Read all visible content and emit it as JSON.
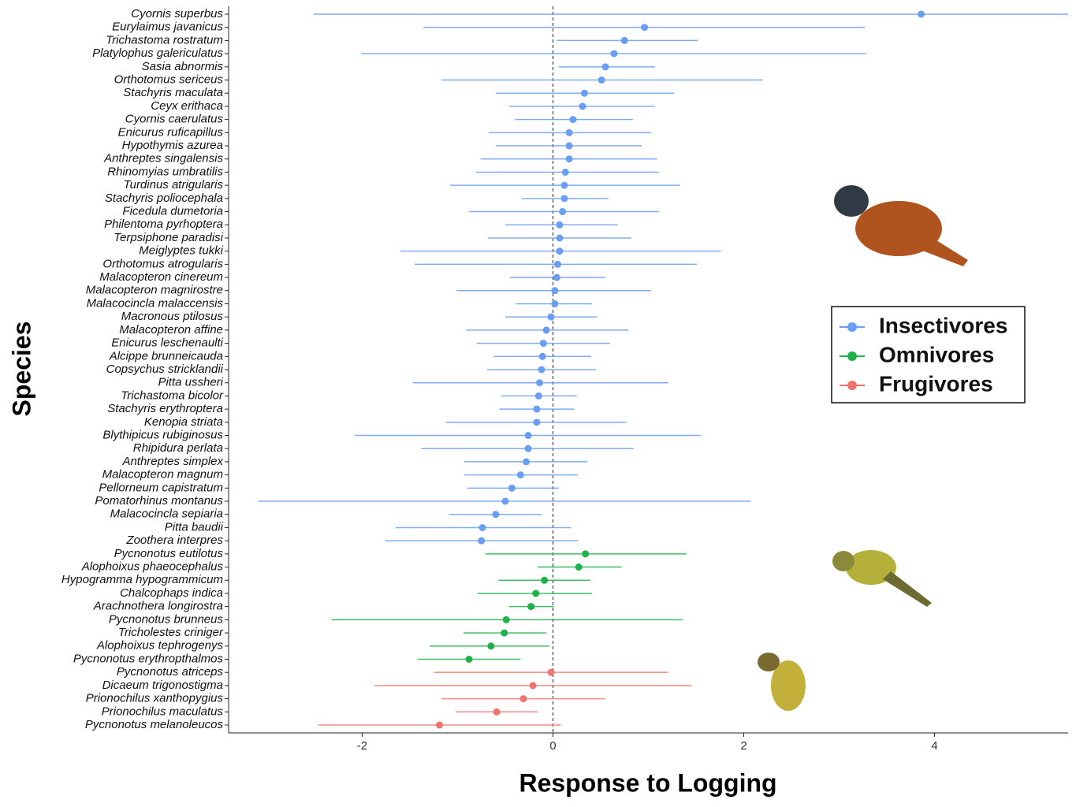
{
  "chart_data": {
    "type": "forest",
    "x_label": "Response to Logging",
    "y_label": "Species",
    "xlim": [
      -3.4,
      5.4
    ],
    "xticks": [
      -2,
      0,
      2,
      4
    ],
    "reference_line": 0,
    "legend": "right",
    "series": [
      {
        "name": "Insectivores",
        "color": "#6a9ef5",
        "categories": [
          "Cyornis superbus",
          "Eurylaimus javanicus",
          "Trichastoma rostratum",
          "Platylophus galericulatus",
          "Sasia abnormis",
          "Orthotomus sericeus",
          "Stachyris maculata",
          "Ceyx erithaca",
          "Cyornis caerulatus",
          "Enicurus ruficapillus",
          "Hypothymis azurea",
          "Anthreptes singalensis",
          "Rhinomyias umbratilis",
          "Turdinus atrigularis",
          "Stachyris poliocephala",
          "Ficedula dumetoria",
          "Philentoma pyrhoptera",
          "Terpsiphone paradisi",
          "Meiglyptes tukki",
          "Orthotomus atrogularis",
          "Malacopteron cinereum",
          "Malacopteron magnirostre",
          "Malacocincla malaccensis",
          "Macronous ptilosus",
          "Malacopteron affine",
          "Enicurus leschenaulti",
          "Alcippe brunneicauda",
          "Copsychus stricklandii",
          "Pitta ussheri",
          "Trichastoma bicolor",
          "Stachyris erythroptera",
          "Kenopia striata",
          "Blythipicus rubiginosus",
          "Rhipidura perlata",
          "Anthreptes simplex",
          "Malacopteron magnum",
          "Pellorneum capistratum",
          "Pomatorhinus montanus",
          "Malacocincla sepiaria",
          "Pitta baudii",
          "Zoothera interpres"
        ],
        "values": [
          3.86,
          0.96,
          0.75,
          0.64,
          0.55,
          0.51,
          0.33,
          0.31,
          0.21,
          0.17,
          0.17,
          0.17,
          0.13,
          0.12,
          0.12,
          0.1,
          0.07,
          0.07,
          0.07,
          0.05,
          0.04,
          0.02,
          0.02,
          -0.02,
          -0.07,
          -0.1,
          -0.11,
          -0.12,
          -0.14,
          -0.15,
          -0.17,
          -0.17,
          -0.26,
          -0.26,
          -0.28,
          -0.34,
          -0.43,
          -0.5,
          -0.6,
          -0.74,
          -0.75
        ],
        "lower": [
          -2.51,
          -1.36,
          0.04,
          -2.01,
          0.06,
          -1.17,
          -0.6,
          -0.46,
          -0.4,
          -0.67,
          -0.6,
          -0.76,
          -0.81,
          -1.08,
          -0.33,
          -0.88,
          -0.5,
          -0.68,
          -1.6,
          -1.45,
          -0.45,
          -1.01,
          -0.39,
          -0.5,
          -0.91,
          -0.8,
          -0.62,
          -0.69,
          -1.47,
          -0.54,
          -0.56,
          -1.12,
          -2.08,
          -1.38,
          -0.93,
          -0.93,
          -0.9,
          -3.09,
          -1.09,
          -1.65,
          -1.76
        ],
        "upper": [
          5.4,
          3.27,
          1.52,
          3.28,
          1.07,
          2.2,
          1.27,
          1.07,
          0.84,
          1.03,
          0.93,
          1.09,
          1.11,
          1.33,
          0.58,
          1.11,
          0.68,
          0.82,
          1.76,
          1.51,
          0.55,
          1.03,
          0.41,
          0.46,
          0.79,
          0.6,
          0.4,
          0.45,
          1.21,
          0.25,
          0.22,
          0.77,
          1.55,
          0.85,
          0.36,
          0.26,
          0.06,
          2.07,
          -0.12,
          0.19,
          0.26
        ]
      },
      {
        "name": "Omnivores",
        "color": "#1fb24a",
        "categories": [
          "Pycnonotus eutilotus",
          "Alophoixus phaeocephalus",
          "Hypogramma hypogrammicum",
          "Chalcophaps indica",
          "Arachnothera longirostra",
          "Pycnonotus brunneus",
          "Tricholestes criniger",
          "Alophoixus tephrogenys",
          "Pycnonotus erythropthalmos"
        ],
        "values": [
          0.34,
          0.27,
          -0.09,
          -0.18,
          -0.23,
          -0.49,
          -0.51,
          -0.65,
          -0.88
        ],
        "lower": [
          -0.71,
          -0.16,
          -0.57,
          -0.79,
          -0.46,
          -2.32,
          -0.94,
          -1.29,
          -1.42
        ],
        "upper": [
          1.4,
          0.72,
          0.39,
          0.41,
          0.01,
          1.36,
          -0.07,
          -0.04,
          -0.34
        ]
      },
      {
        "name": "Frugivores",
        "color": "#f0746e",
        "categories": [
          "Pycnonotus atriceps",
          "Dicaeum trigonostigma",
          "Prionochilus xanthopygius",
          "Prionochilus maculatus",
          "Pycnonotus melanoleucos"
        ],
        "values": [
          -0.02,
          -0.21,
          -0.31,
          -0.59,
          -1.19
        ],
        "lower": [
          -1.25,
          -1.87,
          -1.17,
          -1.02,
          -2.46
        ],
        "upper": [
          1.21,
          1.45,
          0.55,
          -0.16,
          0.08
        ]
      }
    ]
  }
}
